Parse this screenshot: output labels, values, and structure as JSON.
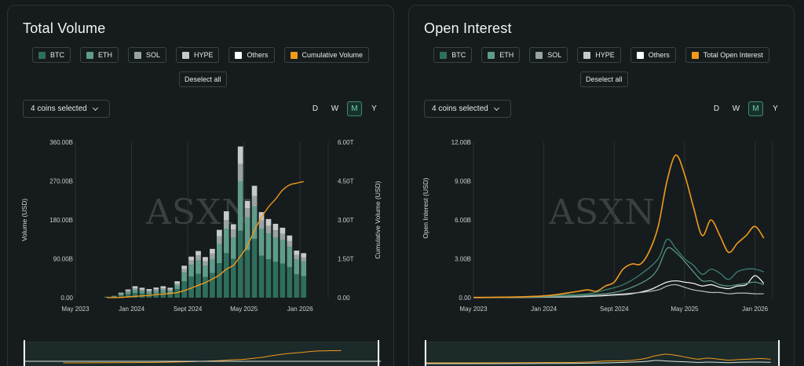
{
  "left_panel": {
    "title": "Total Volume",
    "legend": [
      {
        "label": "BTC",
        "color": "#2f6e5c"
      },
      {
        "label": "ETH",
        "color": "#5f9c8a"
      },
      {
        "label": "SOL",
        "color": "#9aa3a3"
      },
      {
        "label": "HYPE",
        "color": "#c5caca"
      },
      {
        "label": "Others",
        "color": "#ffffff"
      },
      {
        "label": "Cumulative Volume",
        "color": "#f19a1c"
      }
    ],
    "deselect_label": "Deselect all",
    "coins_label": "4 coins selected",
    "periods": [
      {
        "label": "D",
        "active": false
      },
      {
        "label": "W",
        "active": false
      },
      {
        "label": "M",
        "active": true
      },
      {
        "label": "Y",
        "active": false
      }
    ],
    "watermark": "ASXN"
  },
  "right_panel": {
    "title": "Open Interest",
    "legend": [
      {
        "label": "BTC",
        "color": "#2f6e5c"
      },
      {
        "label": "ETH",
        "color": "#5f9c8a"
      },
      {
        "label": "SOL",
        "color": "#9aa3a3"
      },
      {
        "label": "HYPE",
        "color": "#c5caca"
      },
      {
        "label": "Others",
        "color": "#ffffff"
      },
      {
        "label": "Total Open Interest",
        "color": "#f19a1c"
      }
    ],
    "deselect_label": "Deselect all",
    "coins_label": "4 coins selected",
    "periods": [
      {
        "label": "D",
        "active": false
      },
      {
        "label": "W",
        "active": false
      },
      {
        "label": "M",
        "active": true
      },
      {
        "label": "Y",
        "active": false
      }
    ],
    "watermark": "ASXN"
  },
  "chart_data": [
    {
      "type": "bar",
      "x_tick_labels": [
        "May 2023",
        "Jan 2024",
        "Sept 2024",
        "May 2025",
        "Jan 2026"
      ],
      "x_tick_month_index": [
        0,
        8,
        16,
        24,
        32
      ],
      "ylabel": "Volume (USD)",
      "y2label": "Cumulative Volume (USD)",
      "ylim": [
        0,
        360000000000
      ],
      "y_ticks": [
        "0.00",
        "90.00B",
        "180.00B",
        "270.00B",
        "360.00B"
      ],
      "y2lim": [
        0,
        6000000000000
      ],
      "y2_ticks": [
        "0.00",
        "1.50T",
        "3.00T",
        "4.50T",
        "6.00T"
      ],
      "months_start_index": 4,
      "series": [
        {
          "name": "BTC",
          "color": "#2f6e5c",
          "values": [
            1,
            2,
            5,
            8,
            11,
            10,
            8,
            10,
            11,
            10,
            20,
            38,
            49,
            55,
            48,
            57,
            80,
            103,
            90,
            155,
            110,
            136,
            97,
            89,
            83,
            79,
            71,
            54,
            50
          ]
        },
        {
          "name": "ETH",
          "color": "#5f9c8a",
          "values": [
            0.5,
            1,
            3,
            5,
            7,
            6,
            5,
            6,
            7,
            6,
            8,
            20,
            27,
            31,
            26,
            32,
            44,
            57,
            50,
            115,
            76,
            75,
            63,
            60,
            57,
            54,
            47,
            35,
            34
          ]
        },
        {
          "name": "SOL",
          "color": "#9aa3a3",
          "values": [
            0.3,
            0.5,
            1.5,
            3,
            3.5,
            3,
            3,
            3.5,
            3.5,
            3,
            4,
            8,
            10,
            12,
            10,
            13,
            18,
            20,
            18,
            40,
            21,
            24,
            19,
            17,
            16,
            15,
            13,
            10,
            9
          ]
        },
        {
          "name": "HYPE",
          "color": "#c5caca",
          "values": [
            0.2,
            0.5,
            2,
            3,
            5,
            4,
            4,
            4,
            5,
            4,
            6,
            8,
            9,
            10,
            10,
            11,
            15,
            20,
            12,
            40,
            17,
            24,
            19,
            16,
            15,
            14,
            13,
            10,
            10
          ]
        }
      ],
      "cumulative": {
        "name": "Cumulative Volume",
        "color": "#f19a1c",
        "values_trillions": [
          0.001,
          0.003,
          0.01,
          0.03,
          0.05,
          0.07,
          0.09,
          0.12,
          0.14,
          0.16,
          0.2,
          0.27,
          0.37,
          0.48,
          0.58,
          0.72,
          0.87,
          1.1,
          1.25,
          1.6,
          2.0,
          2.6,
          3.1,
          3.5,
          3.8,
          4.15,
          4.35,
          4.42,
          4.48
        ]
      }
    },
    {
      "type": "line",
      "x_tick_labels": [
        "May 2023",
        "Jan 2024",
        "Sept 2024",
        "May 2025",
        "Jan 2026"
      ],
      "x_tick_month_index": [
        0,
        8,
        16,
        24,
        32
      ],
      "ylabel": "Open Interest (USD)",
      "ylim": [
        0,
        12000000000
      ],
      "y_ticks": [
        "0.00",
        "3.00B",
        "6.00B",
        "9.00B",
        "12.00B"
      ],
      "series": [
        {
          "name": "Total Open Interest",
          "color": "#f19a1c",
          "points": [
            [
              0,
              0.02
            ],
            [
              4,
              0.04
            ],
            [
              7,
              0.1
            ],
            [
              9,
              0.2
            ],
            [
              11,
              0.4
            ],
            [
              12,
              0.5
            ],
            [
              13,
              0.6
            ],
            [
              14,
              0.5
            ],
            [
              15,
              0.9
            ],
            [
              16,
              1.2
            ],
            [
              17,
              2.2
            ],
            [
              18,
              2.6
            ],
            [
              19,
              2.6
            ],
            [
              20,
              3.6
            ],
            [
              21,
              5.5
            ],
            [
              22,
              9.0
            ],
            [
              23,
              11.0
            ],
            [
              24,
              9.5
            ],
            [
              25,
              7.0
            ],
            [
              26,
              4.8
            ],
            [
              27,
              6.0
            ],
            [
              28,
              4.8
            ],
            [
              29,
              3.5
            ],
            [
              30,
              4.2
            ],
            [
              31,
              4.8
            ],
            [
              32,
              5.5
            ],
            [
              33,
              4.6
            ]
          ]
        },
        {
          "name": "BTC",
          "color": "#3f8a76",
          "points": [
            [
              0,
              0.01
            ],
            [
              7,
              0.05
            ],
            [
              10,
              0.2
            ],
            [
              13,
              0.3
            ],
            [
              15,
              0.6
            ],
            [
              17,
              1.0
            ],
            [
              19,
              1.8
            ],
            [
              21,
              3.0
            ],
            [
              22,
              4.5
            ],
            [
              23,
              3.8
            ],
            [
              24,
              3.0
            ],
            [
              25,
              2.5
            ],
            [
              26,
              1.8
            ],
            [
              27,
              2.2
            ],
            [
              28,
              1.9
            ],
            [
              29,
              1.4
            ],
            [
              30,
              2.0
            ],
            [
              31,
              2.2
            ],
            [
              32,
              2.2
            ],
            [
              33,
              2.0
            ]
          ]
        },
        {
          "name": "ETH",
          "color": "#5f9c8a",
          "points": [
            [
              0,
              0.01
            ],
            [
              9,
              0.1
            ],
            [
              13,
              0.2
            ],
            [
              16,
              0.4
            ],
            [
              18,
              0.8
            ],
            [
              20,
              1.5
            ],
            [
              21,
              2.3
            ],
            [
              22,
              3.8
            ],
            [
              23,
              3.5
            ],
            [
              24,
              2.8
            ],
            [
              25,
              2.0
            ],
            [
              26,
              1.3
            ],
            [
              27,
              1.3
            ],
            [
              28,
              1.0
            ],
            [
              29,
              0.9
            ],
            [
              30,
              1.0
            ],
            [
              31,
              1.1
            ],
            [
              32,
              1.2
            ],
            [
              33,
              1.0
            ]
          ]
        },
        {
          "name": "SOL",
          "color": "#b9bfbf",
          "points": [
            [
              0,
              0.0
            ],
            [
              10,
              0.05
            ],
            [
              15,
              0.2
            ],
            [
              19,
              0.4
            ],
            [
              21,
              0.6
            ],
            [
              22,
              0.9
            ],
            [
              23,
              1.0
            ],
            [
              24,
              0.8
            ],
            [
              25,
              0.6
            ],
            [
              26,
              0.5
            ],
            [
              27,
              0.4
            ],
            [
              28,
              0.4
            ],
            [
              29,
              0.3
            ],
            [
              30,
              0.35
            ],
            [
              31,
              0.35
            ],
            [
              32,
              0.3
            ],
            [
              33,
              0.3
            ]
          ]
        },
        {
          "name": "HYPE",
          "color": "#ffffff",
          "points": [
            [
              0,
              0.0
            ],
            [
              11,
              0.05
            ],
            [
              16,
              0.2
            ],
            [
              18,
              0.3
            ],
            [
              20,
              0.6
            ],
            [
              21,
              0.9
            ],
            [
              22,
              1.2
            ],
            [
              23,
              1.3
            ],
            [
              24,
              1.2
            ],
            [
              25,
              1.1
            ],
            [
              26,
              0.9
            ],
            [
              27,
              1.0
            ],
            [
              28,
              0.8
            ],
            [
              29,
              0.7
            ],
            [
              30,
              0.9
            ],
            [
              31,
              1.0
            ],
            [
              32,
              1.7
            ],
            [
              33,
              1.1
            ]
          ]
        }
      ]
    }
  ]
}
